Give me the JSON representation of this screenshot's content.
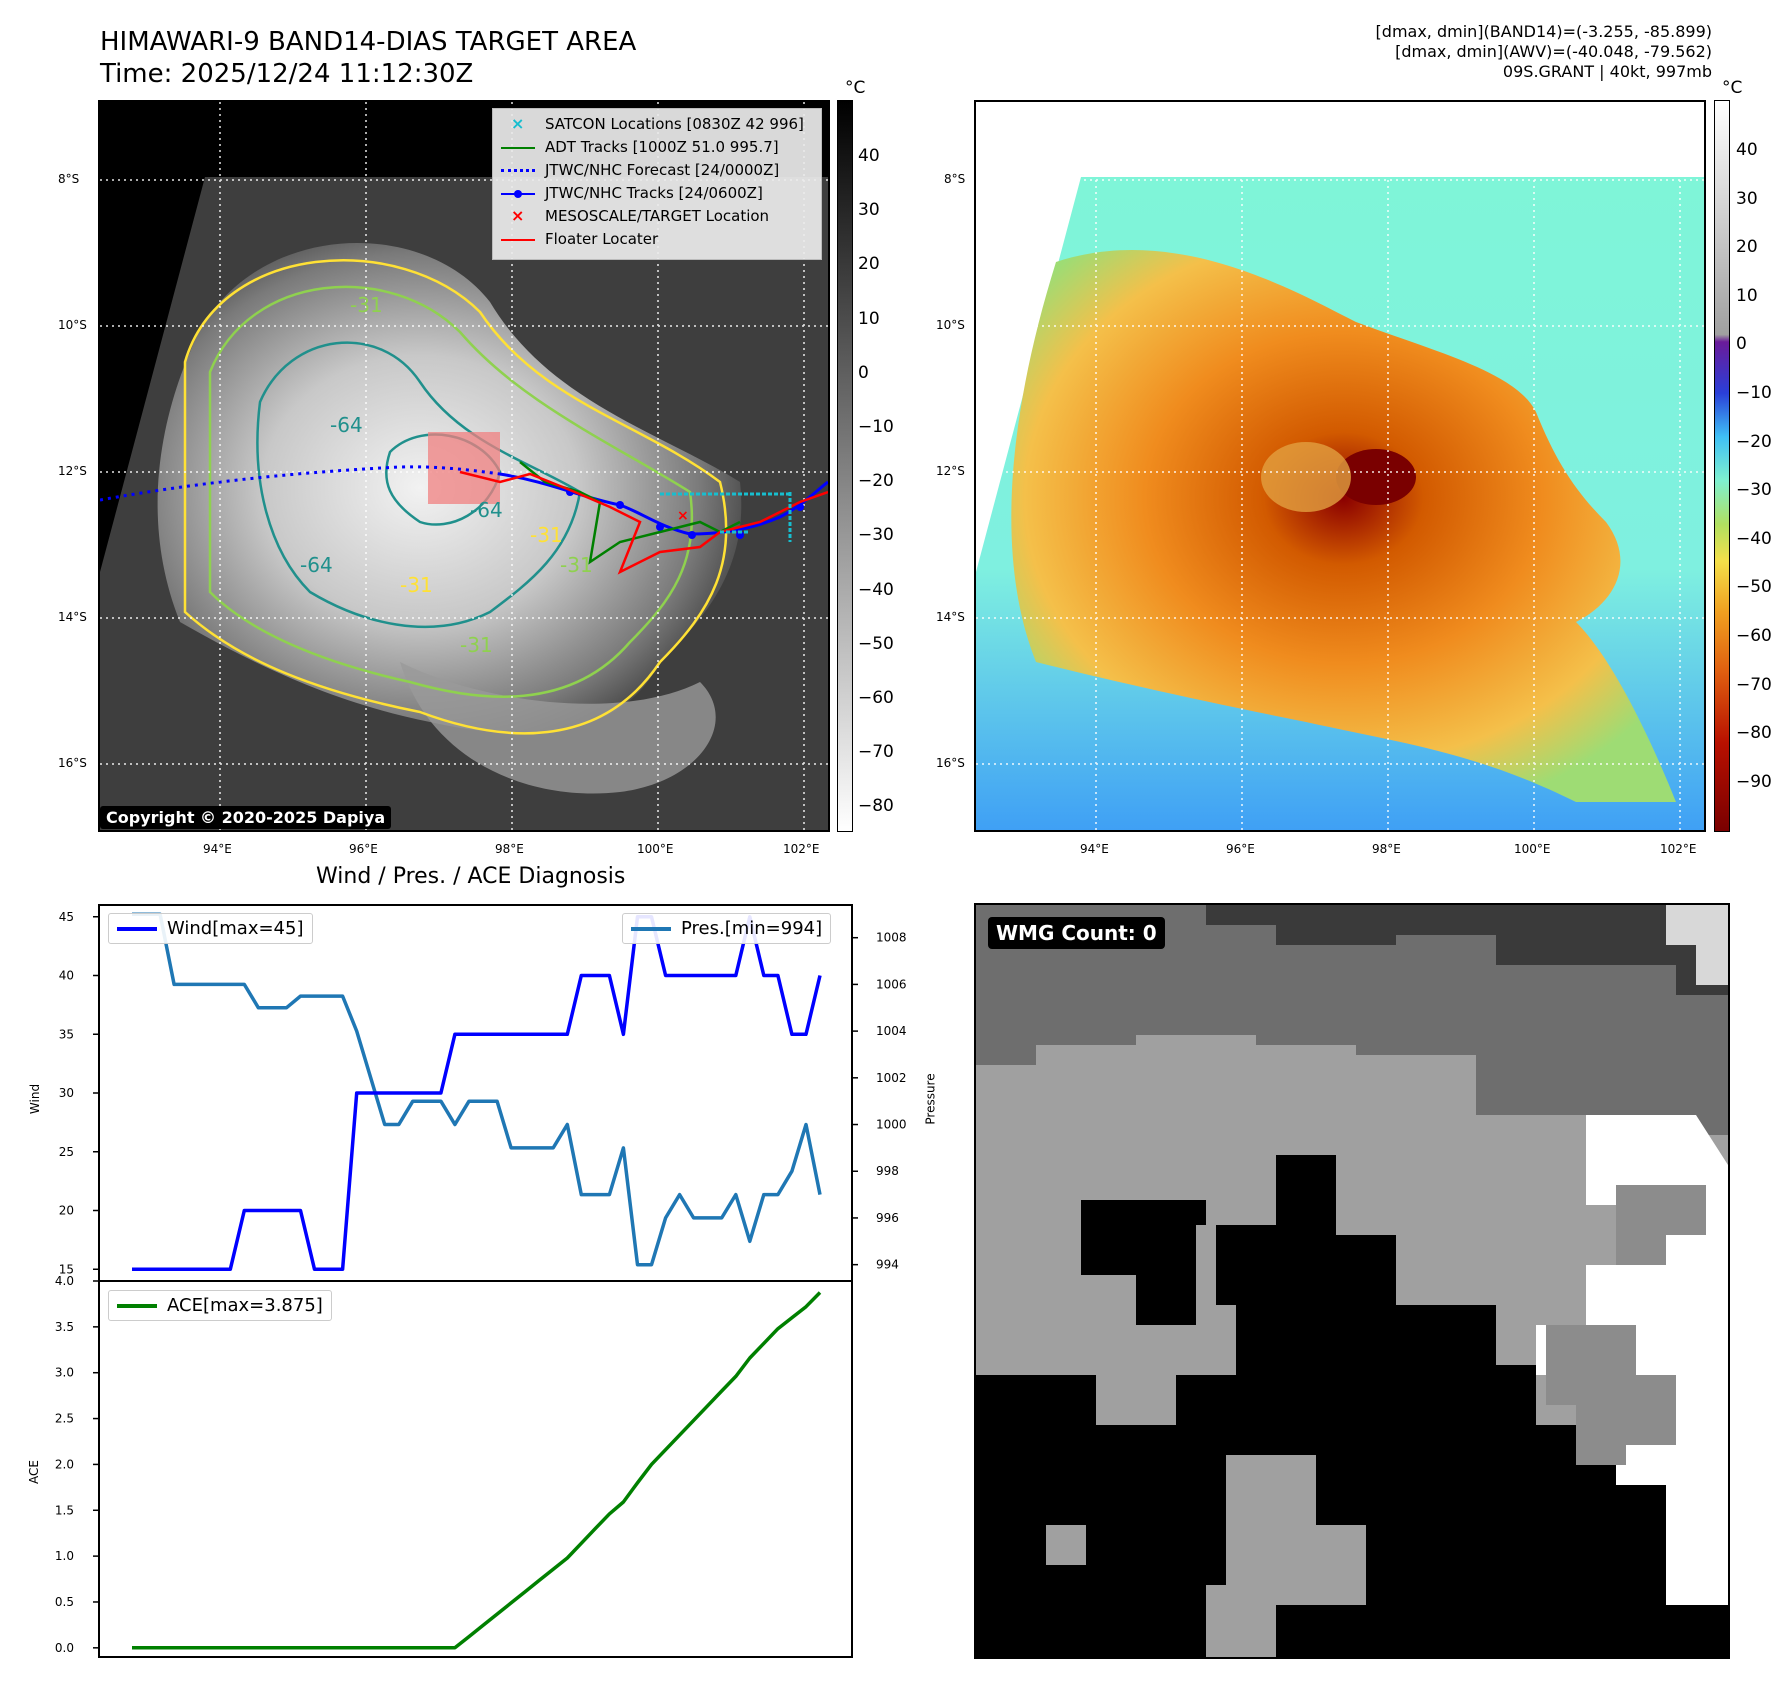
{
  "header": {
    "title_line1": "HIMAWARI-9 BAND14-DIAS TARGET AREA",
    "title_line2": "Time: 2025/12/24 11:12:30Z",
    "right_line1": "[dmax, dmin](BAND14)=(-3.255, -85.899)",
    "right_line2": "[dmax, dmin](AWV)=(-40.048, -79.562)",
    "right_line3": "09S.GRANT | 40kt, 997mb"
  },
  "map": {
    "lat_labels": [
      "8°S",
      "10°S",
      "12°S",
      "14°S",
      "16°S"
    ],
    "lon_labels": [
      "94°E",
      "96°E",
      "98°E",
      "100°E",
      "102°E"
    ],
    "contour_labels": [
      "-31",
      "-64",
      "-64",
      "-64",
      "-31",
      "-31",
      "-31",
      "-31"
    ],
    "copyright": "Copyright © 2020-2025 Dapiya",
    "legend": [
      {
        "label": "SATCON Locations [0830Z 42 996]",
        "color": "#17becf",
        "symbol": "x"
      },
      {
        "label": "ADT Tracks [1000Z 51.0 995.7]",
        "color": "#008000",
        "symbol": "line"
      },
      {
        "label": "JTWC/NHC Forecast [24/0000Z]",
        "color": "#0000ff",
        "symbol": "dotted"
      },
      {
        "label": "JTWC/NHC Tracks [24/0600Z]",
        "color": "#0000ff",
        "symbol": "line-dot"
      },
      {
        "label": "MESOSCALE/TARGET Location",
        "color": "#ff0000",
        "symbol": "x"
      },
      {
        "label": "Floater Locater",
        "color": "#ff0000",
        "symbol": "line"
      }
    ]
  },
  "colorbar_gray": {
    "unit": "°C",
    "ticks": [
      "40",
      "30",
      "20",
      "10",
      "0",
      "−10",
      "−20",
      "−30",
      "−40",
      "−50",
      "−60",
      "−70",
      "−80"
    ]
  },
  "colorbar_color": {
    "unit": "°C",
    "ticks": [
      "40",
      "30",
      "20",
      "10",
      "0",
      "−10",
      "−20",
      "−30",
      "−40",
      "−50",
      "−60",
      "−70",
      "−80",
      "−90"
    ]
  },
  "wmg": {
    "label": "WMG Count: 0"
  },
  "chart_data": [
    {
      "type": "line",
      "title": "Wind / Pres. / ACE Diagnosis",
      "ylabel": "Wind",
      "ylabel2": "Pressure",
      "ylim": [
        14,
        46
      ],
      "ylim2": [
        993.3,
        1009.4
      ],
      "yticks": [
        "45",
        "40",
        "35",
        "30",
        "25",
        "20",
        "15"
      ],
      "yticks2": [
        "1008",
        "1006",
        "1004",
        "1002",
        "1000",
        "998",
        "996",
        "994"
      ],
      "series": [
        {
          "name": "Wind[max=45]",
          "color": "#0000ff",
          "values": [
            15,
            15,
            15,
            15,
            15,
            15,
            15,
            15,
            20,
            20,
            20,
            20,
            20,
            15,
            15,
            15,
            30,
            30,
            30,
            30,
            30,
            30,
            30,
            35,
            35,
            35,
            35,
            35,
            35,
            35,
            35,
            35,
            40,
            40,
            40,
            35,
            45,
            45,
            40,
            40,
            40,
            40,
            40,
            40,
            45,
            40,
            40,
            35,
            35,
            40
          ]
        },
        {
          "name": "Pres.[min=994]",
          "color": "#1f77b4",
          "values": [
            1009,
            1009,
            1009,
            1006,
            1006,
            1006,
            1006,
            1006,
            1006,
            1005,
            1005,
            1005,
            1005.5,
            1005.5,
            1005.5,
            1005.5,
            1004,
            1002,
            1000,
            1000,
            1001,
            1001,
            1001,
            1000,
            1001,
            1001,
            1001,
            999,
            999,
            999,
            999,
            1000,
            997,
            997,
            997,
            999,
            994,
            994,
            996,
            997,
            996,
            996,
            996,
            997,
            995,
            997,
            997,
            998,
            1000,
            997
          ]
        }
      ]
    },
    {
      "type": "line",
      "ylabel": "ACE",
      "ylim": [
        -0.1,
        4.0
      ],
      "yticks": [
        "4.0",
        "3.5",
        "3.0",
        "2.5",
        "2.0",
        "1.5",
        "1.0",
        "0.5",
        "0.0"
      ],
      "series": [
        {
          "name": "ACE[max=3.875]",
          "color": "#008000",
          "values": [
            0,
            0,
            0,
            0,
            0,
            0,
            0,
            0,
            0,
            0,
            0,
            0,
            0,
            0,
            0,
            0,
            0,
            0,
            0,
            0,
            0,
            0,
            0,
            0,
            0.1225,
            0.245,
            0.3675,
            0.49,
            0.6125,
            0.735,
            0.8575,
            0.98,
            1.14,
            1.3,
            1.46,
            1.59,
            1.8,
            2.0,
            2.16,
            2.32,
            2.48,
            2.64,
            2.8,
            2.96,
            3.16,
            3.32,
            3.48,
            3.6,
            3.72,
            3.875
          ]
        }
      ]
    }
  ]
}
